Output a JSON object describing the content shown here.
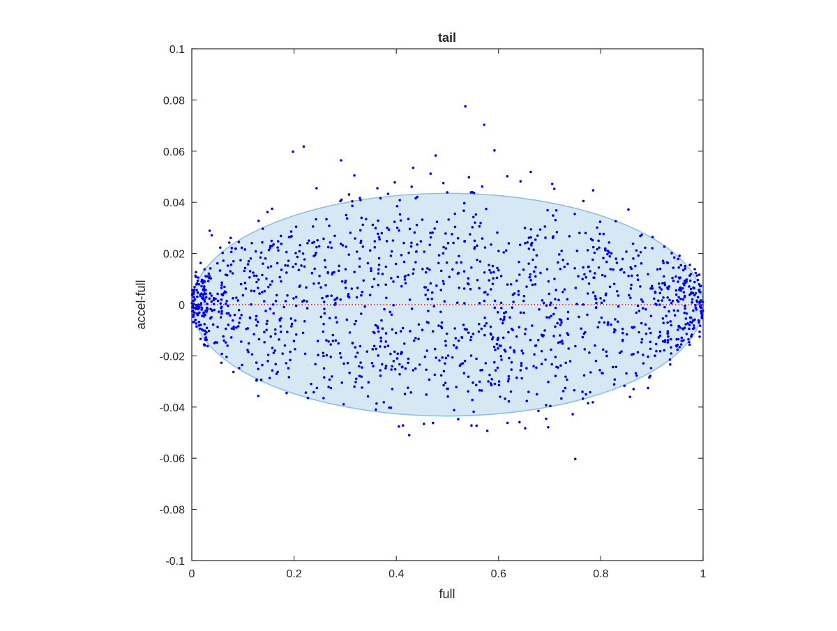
{
  "chart_data": {
    "type": "scatter",
    "title": "tail",
    "xlabel": "full",
    "ylabel": "accel-full",
    "xlim": [
      0,
      1
    ],
    "ylim": [
      -0.1,
      0.1
    ],
    "xticks": [
      0,
      0.2,
      0.4,
      0.6,
      0.8,
      1
    ],
    "xtick_labels": [
      "0",
      "0.2",
      "0.4",
      "0.6",
      "0.8",
      "1"
    ],
    "yticks": [
      -0.1,
      -0.08,
      -0.06,
      -0.04,
      -0.02,
      0,
      0.02,
      0.04,
      0.06,
      0.08,
      0.1
    ],
    "ytick_labels": [
      "-0.1",
      "-0.08",
      "-0.06",
      "-0.04",
      "-0.02",
      "0",
      "0.02",
      "0.04",
      "0.06",
      "0.08",
      "0.1"
    ],
    "grid": false,
    "box": true,
    "colors": {
      "points": "#0000ff",
      "zero_line": "#ff0000",
      "ellipse_fill": "#d6e8f3",
      "ellipse_edge": "#8fc0de",
      "axes": "#262626"
    },
    "ellipse": {
      "center_x": 0.5,
      "center_y": 0.0,
      "semi_x": 0.5,
      "semi_y": 0.0435
    },
    "zero_line": {
      "y": 0,
      "style": "dotted"
    },
    "point_cloud": {
      "count": 1500,
      "x_range": [
        0,
        1
      ],
      "envelope_y": 0.034
    },
    "series": [
      {
        "type": "scatter",
        "points": [
          [
            0.535,
            0.0775
          ],
          [
            0.572,
            0.0703
          ],
          [
            0.219,
            0.0618
          ],
          [
            0.198,
            0.0598
          ],
          [
            0.592,
            0.0603
          ],
          [
            0.292,
            0.0564
          ],
          [
            0.318,
            0.0505
          ],
          [
            0.433,
            0.0535
          ],
          [
            0.477,
            0.0583
          ],
          [
            0.492,
            0.0475
          ],
          [
            0.542,
            0.0498
          ],
          [
            0.568,
            0.0462
          ],
          [
            0.617,
            0.0502
          ],
          [
            0.643,
            0.0482
          ],
          [
            0.663,
            0.0519
          ],
          [
            0.705,
            0.0472
          ],
          [
            0.709,
            0.0453
          ],
          [
            0.785,
            0.0447
          ],
          [
            0.766,
            0.0405
          ],
          [
            0.244,
            0.0455
          ],
          [
            0.363,
            0.0455
          ],
          [
            0.397,
            0.0478
          ],
          [
            0.384,
            0.0433
          ],
          [
            0.467,
            0.0512
          ],
          [
            0.546,
            0.0439
          ],
          [
            0.552,
            0.0437
          ],
          [
            0.854,
            0.0372
          ],
          [
            0.157,
            0.0375
          ],
          [
            0.148,
            0.0362
          ],
          [
            0.035,
            0.0289
          ],
          [
            0.039,
            0.0271
          ],
          [
            0.092,
            0.0245
          ],
          [
            0.076,
            0.0261
          ],
          [
            0.75,
            -0.0603
          ],
          [
            0.413,
            -0.0472
          ],
          [
            0.405,
            -0.0476
          ],
          [
            0.454,
            -0.0466
          ],
          [
            0.547,
            -0.0472
          ],
          [
            0.557,
            -0.0473
          ],
          [
            0.578,
            -0.0493
          ],
          [
            0.641,
            -0.0459
          ],
          [
            0.652,
            -0.0483
          ],
          [
            0.678,
            -0.0415
          ],
          [
            0.693,
            -0.0446
          ],
          [
            0.697,
            -0.0479
          ],
          [
            0.36,
            -0.041
          ],
          [
            0.297,
            -0.0389
          ],
          [
            0.513,
            -0.0412
          ],
          [
            0.745,
            -0.0428
          ],
          [
            0.775,
            -0.0385
          ],
          [
            0.857,
            -0.036
          ],
          [
            0.864,
            -0.033
          ],
          [
            0.031,
            -0.0162
          ],
          [
            0.068,
            -0.0204
          ],
          [
            0.109,
            -0.0177
          ]
        ]
      }
    ]
  }
}
